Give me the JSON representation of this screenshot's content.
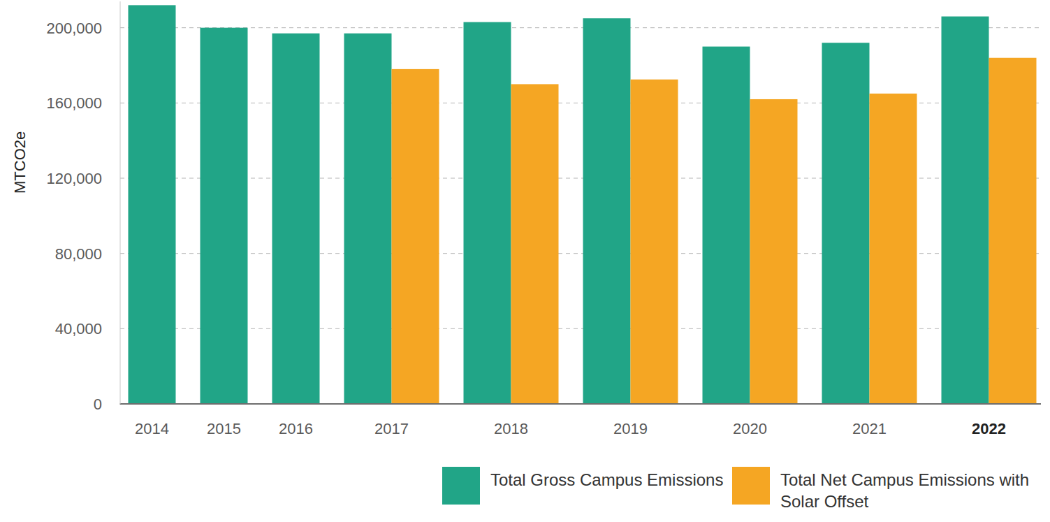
{
  "chart_data": {
    "type": "bar",
    "y_label": "MTCO2e",
    "categories": [
      "2014",
      "2015",
      "2016",
      "2017",
      "2018",
      "2019",
      "2020",
      "2021",
      "2022"
    ],
    "series": [
      {
        "name": "Total Gross Campus Emissions",
        "color": "#21a587",
        "values": [
          212000,
          200000,
          197000,
          197000,
          203000,
          205000,
          190000,
          192000,
          206000
        ]
      },
      {
        "name": "Total Net Campus Emissions with Solar Offset",
        "color": "#f5a623",
        "values": [
          null,
          null,
          null,
          178000,
          170000,
          172500,
          162000,
          165000,
          184000
        ]
      }
    ],
    "ylim": [
      0,
      214000
    ],
    "yticks": [
      0,
      {
        "value": 40000,
        "label": "40,000"
      },
      {
        "value": 80000,
        "label": "80,000"
      },
      {
        "value": 120000,
        "label": "120,000"
      },
      {
        "value": 160000,
        "label": "160,000"
      },
      {
        "value": 200000,
        "label": "200,000"
      }
    ],
    "grid": true,
    "legend": "bottom"
  }
}
